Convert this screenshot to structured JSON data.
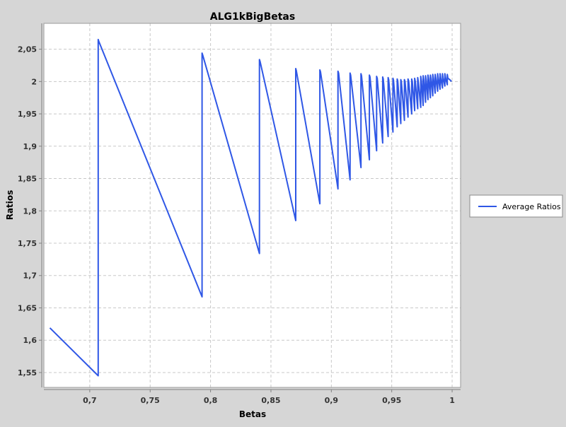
{
  "chart_data": {
    "type": "line",
    "title": "ALG1kBigBetas",
    "xlabel": "Betas",
    "ylabel": "Ratios",
    "xlim": [
      0.662,
      1.007
    ],
    "ylim": [
      1.527,
      2.09
    ],
    "x_ticks": [
      0.7,
      0.75,
      0.8,
      0.85,
      0.9,
      0.95,
      1.0
    ],
    "x_tick_labels": [
      "0,7",
      "0,75",
      "0,8",
      "0,85",
      "0,9",
      "0,95",
      "1"
    ],
    "y_ticks": [
      1.55,
      1.6,
      1.65,
      1.7,
      1.75,
      1.8,
      1.85,
      1.9,
      1.95,
      2.0,
      2.05
    ],
    "y_tick_labels": [
      "1,55",
      "1,6",
      "1,65",
      "1,7",
      "1,75",
      "1,8",
      "1,85",
      "1,9",
      "1,95",
      "2",
      "2,05"
    ],
    "grid": true,
    "legend_position": "right",
    "series": [
      {
        "name": "Average Ratios",
        "color": "#2f57e6",
        "x": [
          0.667,
          0.707,
          0.707,
          0.7075,
          0.793,
          0.793,
          0.7935,
          0.8405,
          0.8405,
          0.841,
          0.8705,
          0.8705,
          0.871,
          0.8905,
          0.8905,
          0.891,
          0.9055,
          0.9055,
          0.906,
          0.9155,
          0.9155,
          0.916,
          0.9245,
          0.9245,
          0.925,
          0.9315,
          0.9315,
          0.932,
          0.9375,
          0.9375,
          0.938,
          0.9425,
          0.9425,
          0.943,
          0.947,
          0.947,
          0.9475,
          0.951,
          0.951,
          0.9515,
          0.9545,
          0.9545,
          0.955,
          0.9575,
          0.9575,
          0.958,
          0.9605,
          0.9605,
          0.961,
          0.9635,
          0.9635,
          0.964,
          0.9665,
          0.9665,
          0.967,
          0.969,
          0.969,
          0.9695,
          0.9715,
          0.9715,
          0.972,
          0.974,
          0.974,
          0.9745,
          0.976,
          0.976,
          0.9765,
          0.978,
          0.978,
          0.9785,
          0.98,
          0.98,
          0.9805,
          0.982,
          0.982,
          0.9825,
          0.984,
          0.984,
          0.9845,
          0.986,
          0.986,
          0.9865,
          0.988,
          0.988,
          0.9885,
          0.99,
          0.99,
          0.9905,
          0.992,
          0.992,
          0.9925,
          0.994,
          0.994,
          0.9945,
          0.996,
          0.996,
          0.9965,
          0.998,
          0.9995
        ],
        "values": [
          1.619,
          1.545,
          2.065,
          2.062,
          1.667,
          2.044,
          2.041,
          1.734,
          2.034,
          2.031,
          1.785,
          2.02,
          2.017,
          1.811,
          2.018,
          2.015,
          1.834,
          2.016,
          2.013,
          1.848,
          2.013,
          2.01,
          1.867,
          2.012,
          2.009,
          1.879,
          2.01,
          2.007,
          1.893,
          2.008,
          2.005,
          1.905,
          2.007,
          2.004,
          1.915,
          2.006,
          2.003,
          1.922,
          2.005,
          2.002,
          1.93,
          2.004,
          2.001,
          1.935,
          2.003,
          2.0,
          1.94,
          2.003,
          2.0,
          1.945,
          2.004,
          2.001,
          1.95,
          2.004,
          2.0,
          1.955,
          2.005,
          2.0,
          1.958,
          2.006,
          2.0,
          1.96,
          2.008,
          2.002,
          1.963,
          2.009,
          2.003,
          1.968,
          2.009,
          2.003,
          1.972,
          2.01,
          2.004,
          1.975,
          2.01,
          2.004,
          1.978,
          2.011,
          2.005,
          1.982,
          2.011,
          2.005,
          1.985,
          2.012,
          2.006,
          1.988,
          2.012,
          2.006,
          1.99,
          2.012,
          2.006,
          1.993,
          2.012,
          2.006,
          1.995,
          2.011,
          2.005,
          2.003,
          2.0
        ]
      }
    ]
  }
}
